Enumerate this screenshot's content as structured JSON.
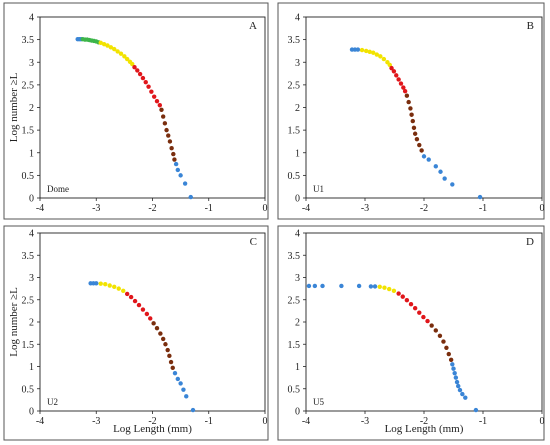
{
  "chart_data": [
    {
      "type": "scatter",
      "panel_letter": "A",
      "sample_label": "Dome",
      "xlabel": "",
      "ylabel": "Log number ≥L",
      "xlim": [
        -4,
        0
      ],
      "ylim": [
        0,
        4
      ],
      "x_ticks": [
        "-4",
        "-3",
        "-2",
        "-1",
        "0"
      ],
      "y_ticks": [
        "0",
        "0.5",
        "1",
        "1.5",
        "2",
        "2.5",
        "3",
        "3.5",
        "4"
      ],
      "segments": [
        {
          "color": "#3a85d6",
          "points": [
            [
              -3.33,
              3.51
            ],
            [
              -3.3,
              3.51
            ],
            [
              -3.27,
              3.51
            ]
          ]
        },
        {
          "color": "#3db54a",
          "points": [
            [
              -3.24,
              3.51
            ],
            [
              -3.2,
              3.5
            ],
            [
              -3.16,
              3.5
            ],
            [
              -3.12,
              3.49
            ],
            [
              -3.08,
              3.48
            ],
            [
              -3.04,
              3.47
            ],
            [
              -3.0,
              3.46
            ],
            [
              -2.96,
              3.44
            ]
          ]
        },
        {
          "color": "#f2e300",
          "points": [
            [
              -2.92,
              3.43
            ],
            [
              -2.86,
              3.4
            ],
            [
              -2.8,
              3.37
            ],
            [
              -2.74,
              3.33
            ],
            [
              -2.68,
              3.29
            ],
            [
              -2.62,
              3.24
            ],
            [
              -2.56,
              3.19
            ],
            [
              -2.5,
              3.13
            ],
            [
              -2.45,
              3.07
            ],
            [
              -2.4,
              3.01
            ],
            [
              -2.36,
              2.96
            ]
          ]
        },
        {
          "color": "#e0161b",
          "points": [
            [
              -2.32,
              2.89
            ],
            [
              -2.27,
              2.82
            ],
            [
              -2.22,
              2.74
            ],
            [
              -2.17,
              2.65
            ],
            [
              -2.12,
              2.56
            ],
            [
              -2.07,
              2.46
            ],
            [
              -2.02,
              2.35
            ],
            [
              -1.97,
              2.24
            ],
            [
              -1.92,
              2.14
            ],
            [
              -1.87,
              2.05
            ]
          ]
        },
        {
          "color": "#7a2e0e",
          "points": [
            [
              -1.84,
              1.95
            ],
            [
              -1.81,
              1.8
            ],
            [
              -1.78,
              1.65
            ],
            [
              -1.75,
              1.5
            ],
            [
              -1.72,
              1.38
            ],
            [
              -1.69,
              1.25
            ],
            [
              -1.66,
              1.1
            ],
            [
              -1.63,
              0.97
            ],
            [
              -1.61,
              0.85
            ]
          ]
        },
        {
          "color": "#3a85d6",
          "points": [
            [
              -1.58,
              0.75
            ],
            [
              -1.55,
              0.62
            ],
            [
              -1.5,
              0.5
            ],
            [
              -1.42,
              0.32
            ],
            [
              -1.32,
              0.02
            ]
          ]
        }
      ]
    },
    {
      "type": "scatter",
      "panel_letter": "B",
      "sample_label": "U1",
      "xlabel": "",
      "ylabel": "",
      "xlim": [
        -4,
        0
      ],
      "ylim": [
        0,
        4
      ],
      "x_ticks": [
        "-4",
        "-3",
        "-2",
        "-1",
        "0"
      ],
      "y_ticks": [
        "0",
        "0.5",
        "1",
        "1.5",
        "2",
        "2.5",
        "3",
        "3.5",
        "4"
      ],
      "segments": [
        {
          "color": "#3a85d6",
          "points": [
            [
              -3.22,
              3.28
            ],
            [
              -3.17,
              3.28
            ],
            [
              -3.12,
              3.28
            ]
          ]
        },
        {
          "color": "#f2e300",
          "points": [
            [
              -3.05,
              3.27
            ],
            [
              -2.98,
              3.25
            ],
            [
              -2.92,
              3.23
            ],
            [
              -2.86,
              3.21
            ],
            [
              -2.8,
              3.17
            ],
            [
              -2.74,
              3.13
            ],
            [
              -2.68,
              3.07
            ],
            [
              -2.62,
              3.0
            ],
            [
              -2.58,
              2.94
            ]
          ]
        },
        {
          "color": "#e0161b",
          "points": [
            [
              -2.55,
              2.87
            ],
            [
              -2.51,
              2.8
            ],
            [
              -2.47,
              2.71
            ],
            [
              -2.43,
              2.62
            ],
            [
              -2.39,
              2.53
            ],
            [
              -2.35,
              2.44
            ],
            [
              -2.32,
              2.36
            ]
          ]
        },
        {
          "color": "#7a2e0e",
          "points": [
            [
              -2.29,
              2.26
            ],
            [
              -2.26,
              2.12
            ],
            [
              -2.23,
              1.98
            ],
            [
              -2.21,
              1.84
            ],
            [
              -2.19,
              1.7
            ],
            [
              -2.17,
              1.55
            ],
            [
              -2.15,
              1.42
            ],
            [
              -2.12,
              1.3
            ],
            [
              -2.08,
              1.17
            ],
            [
              -2.04,
              1.05
            ]
          ]
        },
        {
          "color": "#3a85d6",
          "points": [
            [
              -2.0,
              0.92
            ],
            [
              -1.92,
              0.85
            ],
            [
              -1.8,
              0.7
            ],
            [
              -1.72,
              0.58
            ],
            [
              -1.65,
              0.43
            ],
            [
              -1.52,
              0.3
            ],
            [
              -1.05,
              0.02
            ]
          ]
        }
      ]
    },
    {
      "type": "scatter",
      "panel_letter": "C",
      "sample_label": "U2",
      "xlabel": "Log Length (mm)",
      "ylabel": "Log number ≥L",
      "xlim": [
        -4,
        0
      ],
      "ylim": [
        0,
        4
      ],
      "x_ticks": [
        "-4",
        "-3",
        "-2",
        "-1",
        "0"
      ],
      "y_ticks": [
        "0",
        "0.5",
        "1",
        "1.5",
        "2",
        "2.5",
        "3",
        "3.5",
        "4"
      ],
      "segments": [
        {
          "color": "#3a85d6",
          "points": [
            [
              -3.1,
              2.87
            ],
            [
              -3.05,
              2.87
            ],
            [
              -3.0,
              2.87
            ]
          ]
        },
        {
          "color": "#f2e300",
          "points": [
            [
              -2.92,
              2.86
            ],
            [
              -2.84,
              2.85
            ],
            [
              -2.76,
              2.82
            ],
            [
              -2.68,
              2.79
            ],
            [
              -2.6,
              2.75
            ],
            [
              -2.52,
              2.7
            ]
          ]
        },
        {
          "color": "#e0161b",
          "points": [
            [
              -2.45,
              2.63
            ],
            [
              -2.38,
              2.56
            ],
            [
              -2.31,
              2.47
            ],
            [
              -2.24,
              2.38
            ],
            [
              -2.17,
              2.28
            ],
            [
              -2.1,
              2.18
            ],
            [
              -2.04,
              2.08
            ]
          ]
        },
        {
          "color": "#7a2e0e",
          "points": [
            [
              -1.98,
              1.97
            ],
            [
              -1.92,
              1.86
            ],
            [
              -1.86,
              1.74
            ],
            [
              -1.81,
              1.62
            ],
            [
              -1.77,
              1.5
            ],
            [
              -1.73,
              1.37
            ],
            [
              -1.7,
              1.24
            ],
            [
              -1.67,
              1.1
            ],
            [
              -1.64,
              0.97
            ]
          ]
        },
        {
          "color": "#3a85d6",
          "points": [
            [
              -1.6,
              0.85
            ],
            [
              -1.55,
              0.72
            ],
            [
              -1.5,
              0.62
            ],
            [
              -1.45,
              0.48
            ],
            [
              -1.4,
              0.33
            ],
            [
              -1.28,
              0.02
            ]
          ]
        }
      ]
    },
    {
      "type": "scatter",
      "panel_letter": "D",
      "sample_label": "U5",
      "xlabel": "Log Length (mm)",
      "ylabel": "",
      "xlim": [
        -4,
        0
      ],
      "ylim": [
        0,
        4
      ],
      "x_ticks": [
        "-4",
        "-3",
        "-2",
        "-1",
        "0"
      ],
      "y_ticks": [
        "0",
        "0.5",
        "1",
        "1.5",
        "2",
        "2.5",
        "3",
        "3.5",
        "4"
      ],
      "segments": [
        {
          "color": "#3a85d6",
          "points": [
            [
              -3.95,
              2.81
            ],
            [
              -3.85,
              2.81
            ],
            [
              -3.72,
              2.81
            ],
            [
              -3.4,
              2.81
            ],
            [
              -3.1,
              2.81
            ],
            [
              -2.9,
              2.8
            ],
            [
              -2.83,
              2.8
            ]
          ]
        },
        {
          "color": "#f2e300",
          "points": [
            [
              -2.75,
              2.79
            ],
            [
              -2.67,
              2.77
            ],
            [
              -2.59,
              2.74
            ],
            [
              -2.51,
              2.7
            ]
          ]
        },
        {
          "color": "#e0161b",
          "points": [
            [
              -2.43,
              2.64
            ],
            [
              -2.36,
              2.57
            ],
            [
              -2.29,
              2.49
            ],
            [
              -2.22,
              2.4
            ],
            [
              -2.15,
              2.31
            ],
            [
              -2.08,
              2.21
            ],
            [
              -2.01,
              2.11
            ],
            [
              -1.94,
              2.02
            ]
          ]
        },
        {
          "color": "#7a2e0e",
          "points": [
            [
              -1.87,
              1.92
            ],
            [
              -1.8,
              1.81
            ],
            [
              -1.73,
              1.69
            ],
            [
              -1.67,
              1.56
            ],
            [
              -1.62,
              1.42
            ],
            [
              -1.58,
              1.28
            ],
            [
              -1.54,
              1.15
            ]
          ]
        },
        {
          "color": "#3a85d6",
          "points": [
            [
              -1.52,
              1.05
            ],
            [
              -1.5,
              0.95
            ],
            [
              -1.48,
              0.85
            ],
            [
              -1.46,
              0.75
            ],
            [
              -1.44,
              0.65
            ],
            [
              -1.42,
              0.56
            ],
            [
              -1.39,
              0.47
            ],
            [
              -1.35,
              0.38
            ],
            [
              -1.3,
              0.3
            ],
            [
              -1.12,
              0.02
            ]
          ]
        }
      ]
    }
  ]
}
